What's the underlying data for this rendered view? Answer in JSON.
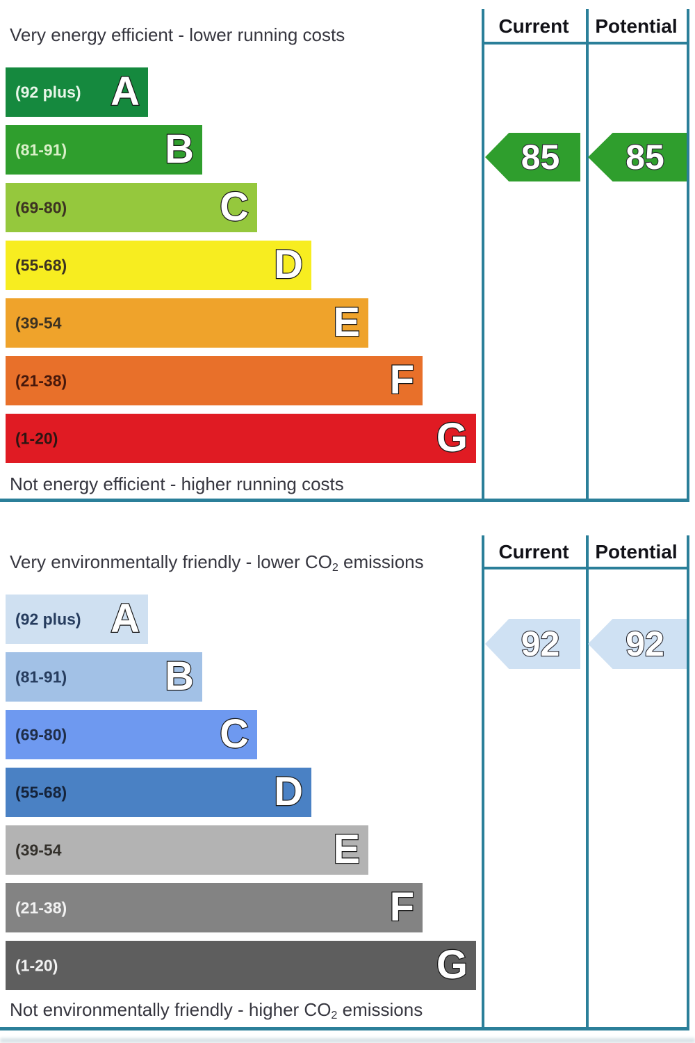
{
  "colors": {
    "table_border": "#2b7f99",
    "title_text": "#36363f",
    "header_text": "#121218",
    "background": "#ffffff"
  },
  "energy": {
    "title": "Very energy efficient - lower running costs",
    "footer": "Not energy efficient - higher running costs",
    "col_current": "Current",
    "col_potential": "Potential",
    "bands": [
      {
        "letter": "A",
        "range": "(92 plus)",
        "color": "#15893e",
        "label_color": "#e9f6e9"
      },
      {
        "letter": "B",
        "range": "(81-91)",
        "color": "#2f9e2d",
        "label_color": "#d9f0c8"
      },
      {
        "letter": "C",
        "range": "(69-80)",
        "color": "#95c83d",
        "label_color": "#3c3222"
      },
      {
        "letter": "D",
        "range": "(55-68)",
        "color": "#f7ed20",
        "label_color": "#3c3222"
      },
      {
        "letter": "E",
        "range": "(39-54",
        "color": "#efa32b",
        "label_color": "#3c3222"
      },
      {
        "letter": "F",
        "range": "(21-38)",
        "color": "#e8702a",
        "label_color": "#47180b"
      },
      {
        "letter": "G",
        "range": "(1-20)",
        "color": "#e01b23",
        "label_color": "#2d1512"
      }
    ],
    "current": {
      "label": "85",
      "band": "B",
      "color": "#2f9e2d"
    },
    "potential": {
      "label": "85",
      "band": "B",
      "color": "#2f9e2d"
    }
  },
  "co2": {
    "title_pre": "Very environmentally friendly - lower CO",
    "title_sub": "2",
    "title_post": " emissions",
    "footer_pre": "Not environmentally friendly - higher CO",
    "footer_sub": "2",
    "footer_post": " emissions",
    "col_current": "Current",
    "col_potential": "Potential",
    "bands": [
      {
        "letter": "A",
        "range": "(92 plus)",
        "color": "#cfe0f1",
        "label_color": "#263c5e"
      },
      {
        "letter": "B",
        "range": "(81-91)",
        "color": "#a2c1e6",
        "label_color": "#263c5e"
      },
      {
        "letter": "C",
        "range": "(69-80)",
        "color": "#6e99f0",
        "label_color": "#1f2d46"
      },
      {
        "letter": "D",
        "range": "(55-68)",
        "color": "#4a81c4",
        "label_color": "#15233a"
      },
      {
        "letter": "E",
        "range": "(39-54",
        "color": "#b3b3b3",
        "label_color": "#33302b"
      },
      {
        "letter": "F",
        "range": "(21-38)",
        "color": "#838383",
        "label_color": "#f2f2f2"
      },
      {
        "letter": "G",
        "range": "(1-20)",
        "color": "#5e5e5e",
        "label_color": "#f2f2f2"
      }
    ],
    "current": {
      "label": "92",
      "band": "A",
      "color": "#cfe1f3"
    },
    "potential": {
      "label": "92",
      "band": "A",
      "color": "#cfe1f3"
    }
  },
  "chart_data": [
    {
      "type": "bar",
      "title": "Very energy efficient - lower running costs",
      "footer": "Not energy efficient - higher running costs",
      "categories": [
        "A",
        "B",
        "C",
        "D",
        "E",
        "F",
        "G"
      ],
      "category_ranges": [
        "92 plus",
        "81-91",
        "69-80",
        "55-68",
        "39-54",
        "21-38",
        "1-20"
      ],
      "bar_colors": [
        "#15893e",
        "#2f9e2d",
        "#95c83d",
        "#f7ed20",
        "#efa32b",
        "#e8702a",
        "#e01b23"
      ],
      "columns": [
        "Current",
        "Potential"
      ],
      "series": [
        {
          "name": "Current",
          "value": 85,
          "band": "B"
        },
        {
          "name": "Potential",
          "value": 85,
          "band": "B"
        }
      ],
      "legend_position": "right",
      "grid": false
    },
    {
      "type": "bar",
      "title": "Very environmentally friendly - lower CO2 emissions",
      "footer": "Not environmentally friendly - higher CO2 emissions",
      "categories": [
        "A",
        "B",
        "C",
        "D",
        "E",
        "F",
        "G"
      ],
      "category_ranges": [
        "92 plus",
        "81-91",
        "69-80",
        "55-68",
        "39-54",
        "21-38",
        "1-20"
      ],
      "bar_colors": [
        "#cfe0f1",
        "#a2c1e6",
        "#6e99f0",
        "#4a81c4",
        "#b3b3b3",
        "#838383",
        "#5e5e5e"
      ],
      "columns": [
        "Current",
        "Potential"
      ],
      "series": [
        {
          "name": "Current",
          "value": 92,
          "band": "A"
        },
        {
          "name": "Potential",
          "value": 92,
          "band": "A"
        }
      ],
      "legend_position": "right",
      "grid": false
    }
  ]
}
